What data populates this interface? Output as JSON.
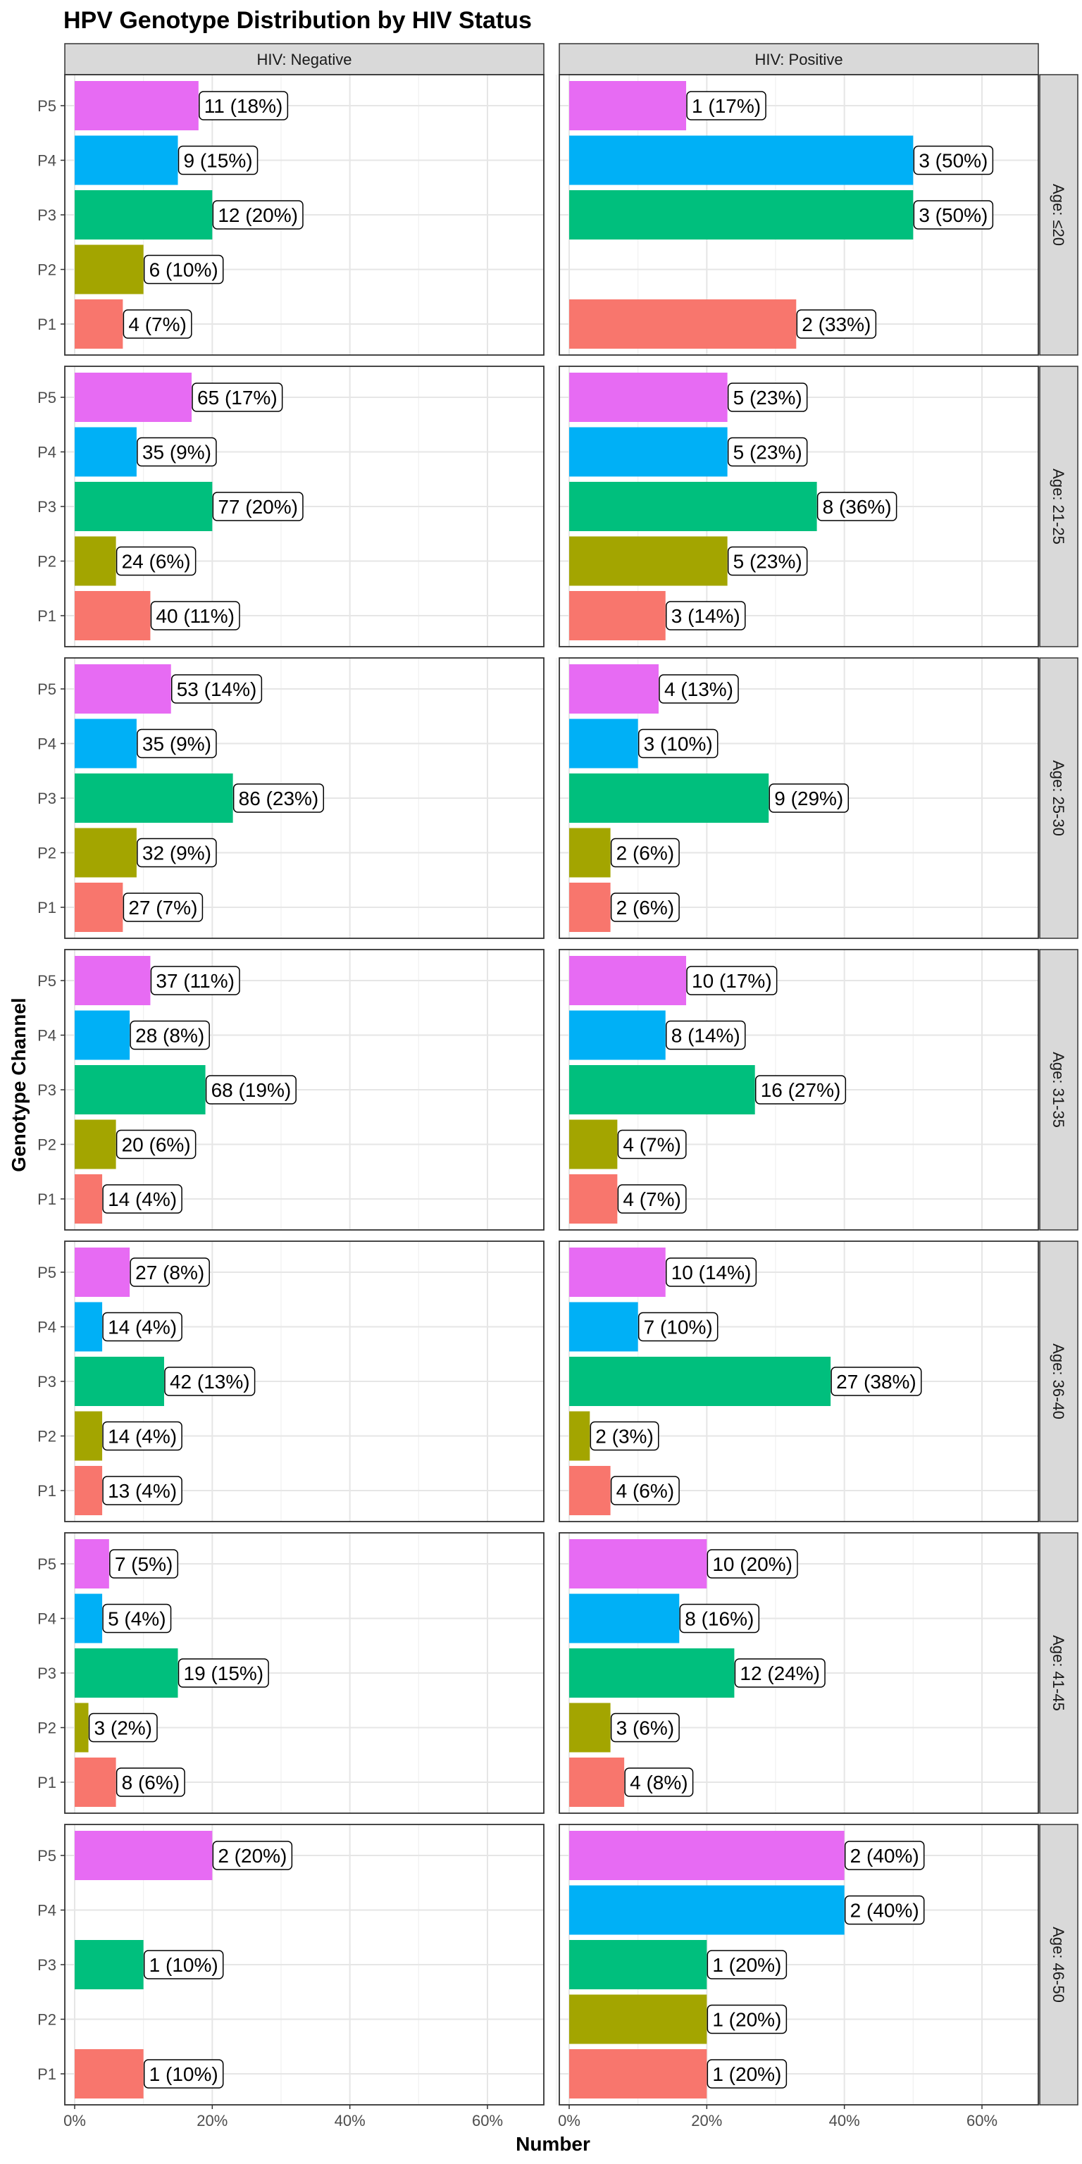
{
  "chart_data": {
    "type": "bar",
    "orientation": "horizontal",
    "title": "HPV Genotype Distribution by HIV Status",
    "xlabel": "Number",
    "ylabel": "Genotype Channel",
    "xlim": [
      0,
      0.72
    ],
    "x_ticks": [
      0,
      0.2,
      0.4,
      0.6
    ],
    "x_tick_labels": [
      "0%",
      "20%",
      "40%",
      "60%"
    ],
    "grid": true,
    "legend": "none",
    "categories": [
      "P1",
      "P2",
      "P3",
      "P4",
      "P5"
    ],
    "colors": {
      "P1": "#F8766D",
      "P2": "#A3A500",
      "P3": "#00BF7D",
      "P4": "#00B0F6",
      "P5": "#E76BF3"
    },
    "columns": [
      "HIV: Negative",
      "HIV: Positive"
    ],
    "rows": [
      {
        "strip": "Age: ≤20",
        "panels": [
          {
            "values": [
              0.07,
              0.1,
              0.2,
              0.15,
              0.18
            ],
            "labels": [
              "4 (7%)",
              "6 (10%)",
              "12 (20%)",
              "9 (15%)",
              "11 (18%)"
            ]
          },
          {
            "values": [
              0.33,
              null,
              0.5,
              0.5,
              0.17
            ],
            "labels": [
              "2 (33%)",
              "",
              "3 (50%)",
              "3 (50%)",
              "1 (17%)"
            ]
          }
        ]
      },
      {
        "strip": "Age: 21-25",
        "panels": [
          {
            "values": [
              0.11,
              0.06,
              0.2,
              0.09,
              0.17
            ],
            "labels": [
              "40 (11%)",
              "24 (6%)",
              "77 (20%)",
              "35 (9%)",
              "65 (17%)"
            ]
          },
          {
            "values": [
              0.14,
              0.23,
              0.36,
              0.23,
              0.23
            ],
            "labels": [
              "3 (14%)",
              "5 (23%)",
              "8 (36%)",
              "5 (23%)",
              "5 (23%)"
            ]
          }
        ]
      },
      {
        "strip": "Age: 25-30",
        "panels": [
          {
            "values": [
              0.07,
              0.09,
              0.23,
              0.09,
              0.14
            ],
            "labels": [
              "27 (7%)",
              "32 (9%)",
              "86 (23%)",
              "35 (9%)",
              "53 (14%)"
            ]
          },
          {
            "values": [
              0.06,
              0.06,
              0.29,
              0.1,
              0.13
            ],
            "labels": [
              "2 (6%)",
              "2 (6%)",
              "9 (29%)",
              "3 (10%)",
              "4 (13%)"
            ]
          }
        ]
      },
      {
        "strip": "Age: 31-35",
        "panels": [
          {
            "values": [
              0.04,
              0.06,
              0.19,
              0.08,
              0.11
            ],
            "labels": [
              "14 (4%)",
              "20 (6%)",
              "68 (19%)",
              "28 (8%)",
              "37 (11%)"
            ]
          },
          {
            "values": [
              0.07,
              0.07,
              0.27,
              0.14,
              0.17
            ],
            "labels": [
              "4 (7%)",
              "4 (7%)",
              "16 (27%)",
              "8 (14%)",
              "10 (17%)"
            ]
          }
        ]
      },
      {
        "strip": "Age: 36-40",
        "panels": [
          {
            "values": [
              0.04,
              0.04,
              0.13,
              0.04,
              0.08
            ],
            "labels": [
              "13 (4%)",
              "14 (4%)",
              "42 (13%)",
              "14 (4%)",
              "27 (8%)"
            ]
          },
          {
            "values": [
              0.06,
              0.03,
              0.38,
              0.1,
              0.14
            ],
            "labels": [
              "4 (6%)",
              "2 (3%)",
              "27 (38%)",
              "7 (10%)",
              "10 (14%)"
            ]
          }
        ]
      },
      {
        "strip": "Age: 41-45",
        "panels": [
          {
            "values": [
              0.06,
              0.02,
              0.15,
              0.04,
              0.05
            ],
            "labels": [
              "8 (6%)",
              "3 (2%)",
              "19 (15%)",
              "5 (4%)",
              "7 (5%)"
            ]
          },
          {
            "values": [
              0.08,
              0.06,
              0.24,
              0.16,
              0.2
            ],
            "labels": [
              "4 (8%)",
              "3 (6%)",
              "12 (24%)",
              "8 (16%)",
              "10 (20%)"
            ]
          }
        ]
      },
      {
        "strip": "Age: 46-50",
        "panels": [
          {
            "values": [
              0.1,
              null,
              0.1,
              null,
              0.2
            ],
            "labels": [
              "1 (10%)",
              "",
              "1 (10%)",
              "",
              "2 (20%)"
            ]
          },
          {
            "values": [
              0.2,
              0.2,
              0.2,
              0.4,
              0.4
            ],
            "labels": [
              "1 (20%)",
              "1 (20%)",
              "1 (20%)",
              "2 (40%)",
              "2 (40%)"
            ]
          }
        ]
      }
    ]
  }
}
